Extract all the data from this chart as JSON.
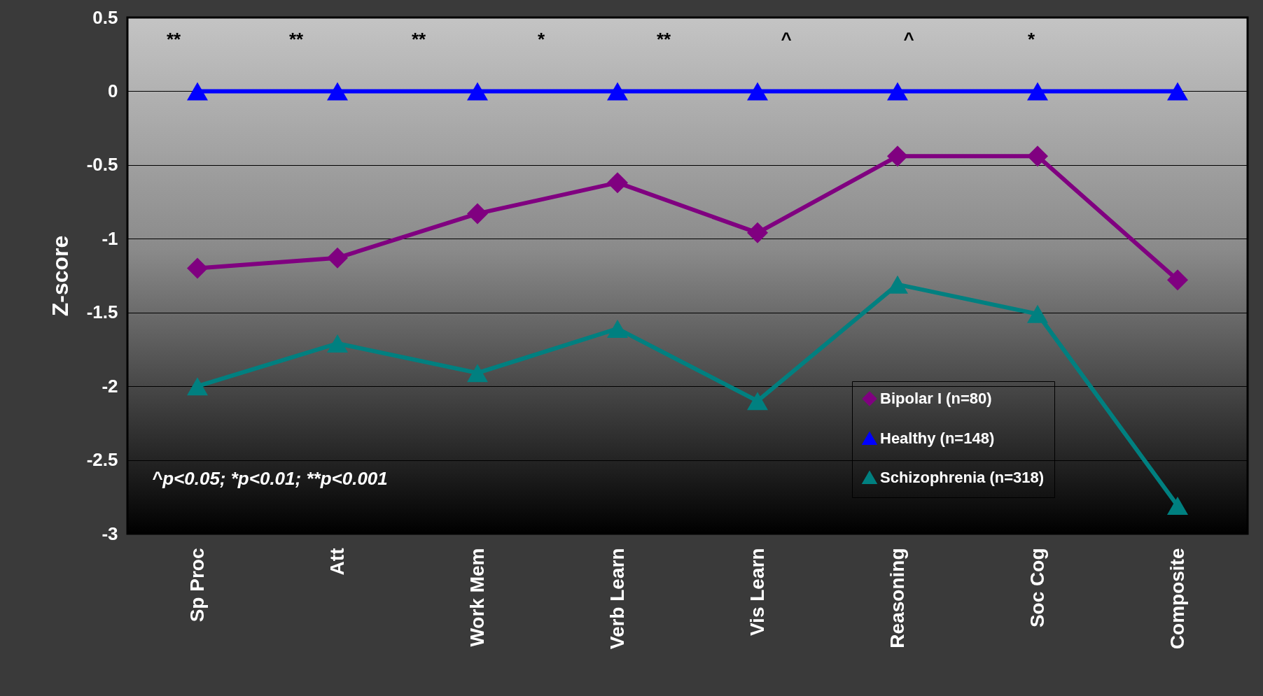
{
  "chart_data": {
    "type": "line",
    "ylabel": "Z-score",
    "categories": [
      "Sp Proc",
      "Att",
      "Work Mem",
      "Verb Learn",
      "Vis Learn",
      "Reasoning",
      "Soc Cog",
      "Composite"
    ],
    "series": [
      {
        "name": "Bipolar I (n=80)",
        "color": "#800080",
        "marker": "diamond",
        "values": [
          -1.2,
          -1.13,
          -0.83,
          -0.62,
          -0.96,
          -0.44,
          -0.44,
          -1.28
        ]
      },
      {
        "name": "Healthy (n=148)",
        "color": "#0000ff",
        "marker": "triangle",
        "values": [
          0,
          0,
          0,
          0,
          0,
          0,
          0,
          0
        ]
      },
      {
        "name": "Schizophrenia (n=318)",
        "color": "#008080",
        "marker": "triangle",
        "values": [
          -2.0,
          -1.71,
          -1.91,
          -1.61,
          -2.1,
          -1.31,
          -1.51,
          -2.81
        ]
      }
    ],
    "ylim": [
      -3,
      0.5
    ],
    "yticks": [
      -3,
      -2.5,
      -2,
      -1.5,
      -1,
      -0.5,
      0,
      0.5
    ],
    "grid": "y",
    "legend": "bottom right",
    "line_style": "solid",
    "annotations": [
      "**",
      "**",
      "**",
      "*",
      "**",
      "^",
      "^",
      "*",
      "^p<0.05; *p<0.01; **p<0.001"
    ]
  }
}
